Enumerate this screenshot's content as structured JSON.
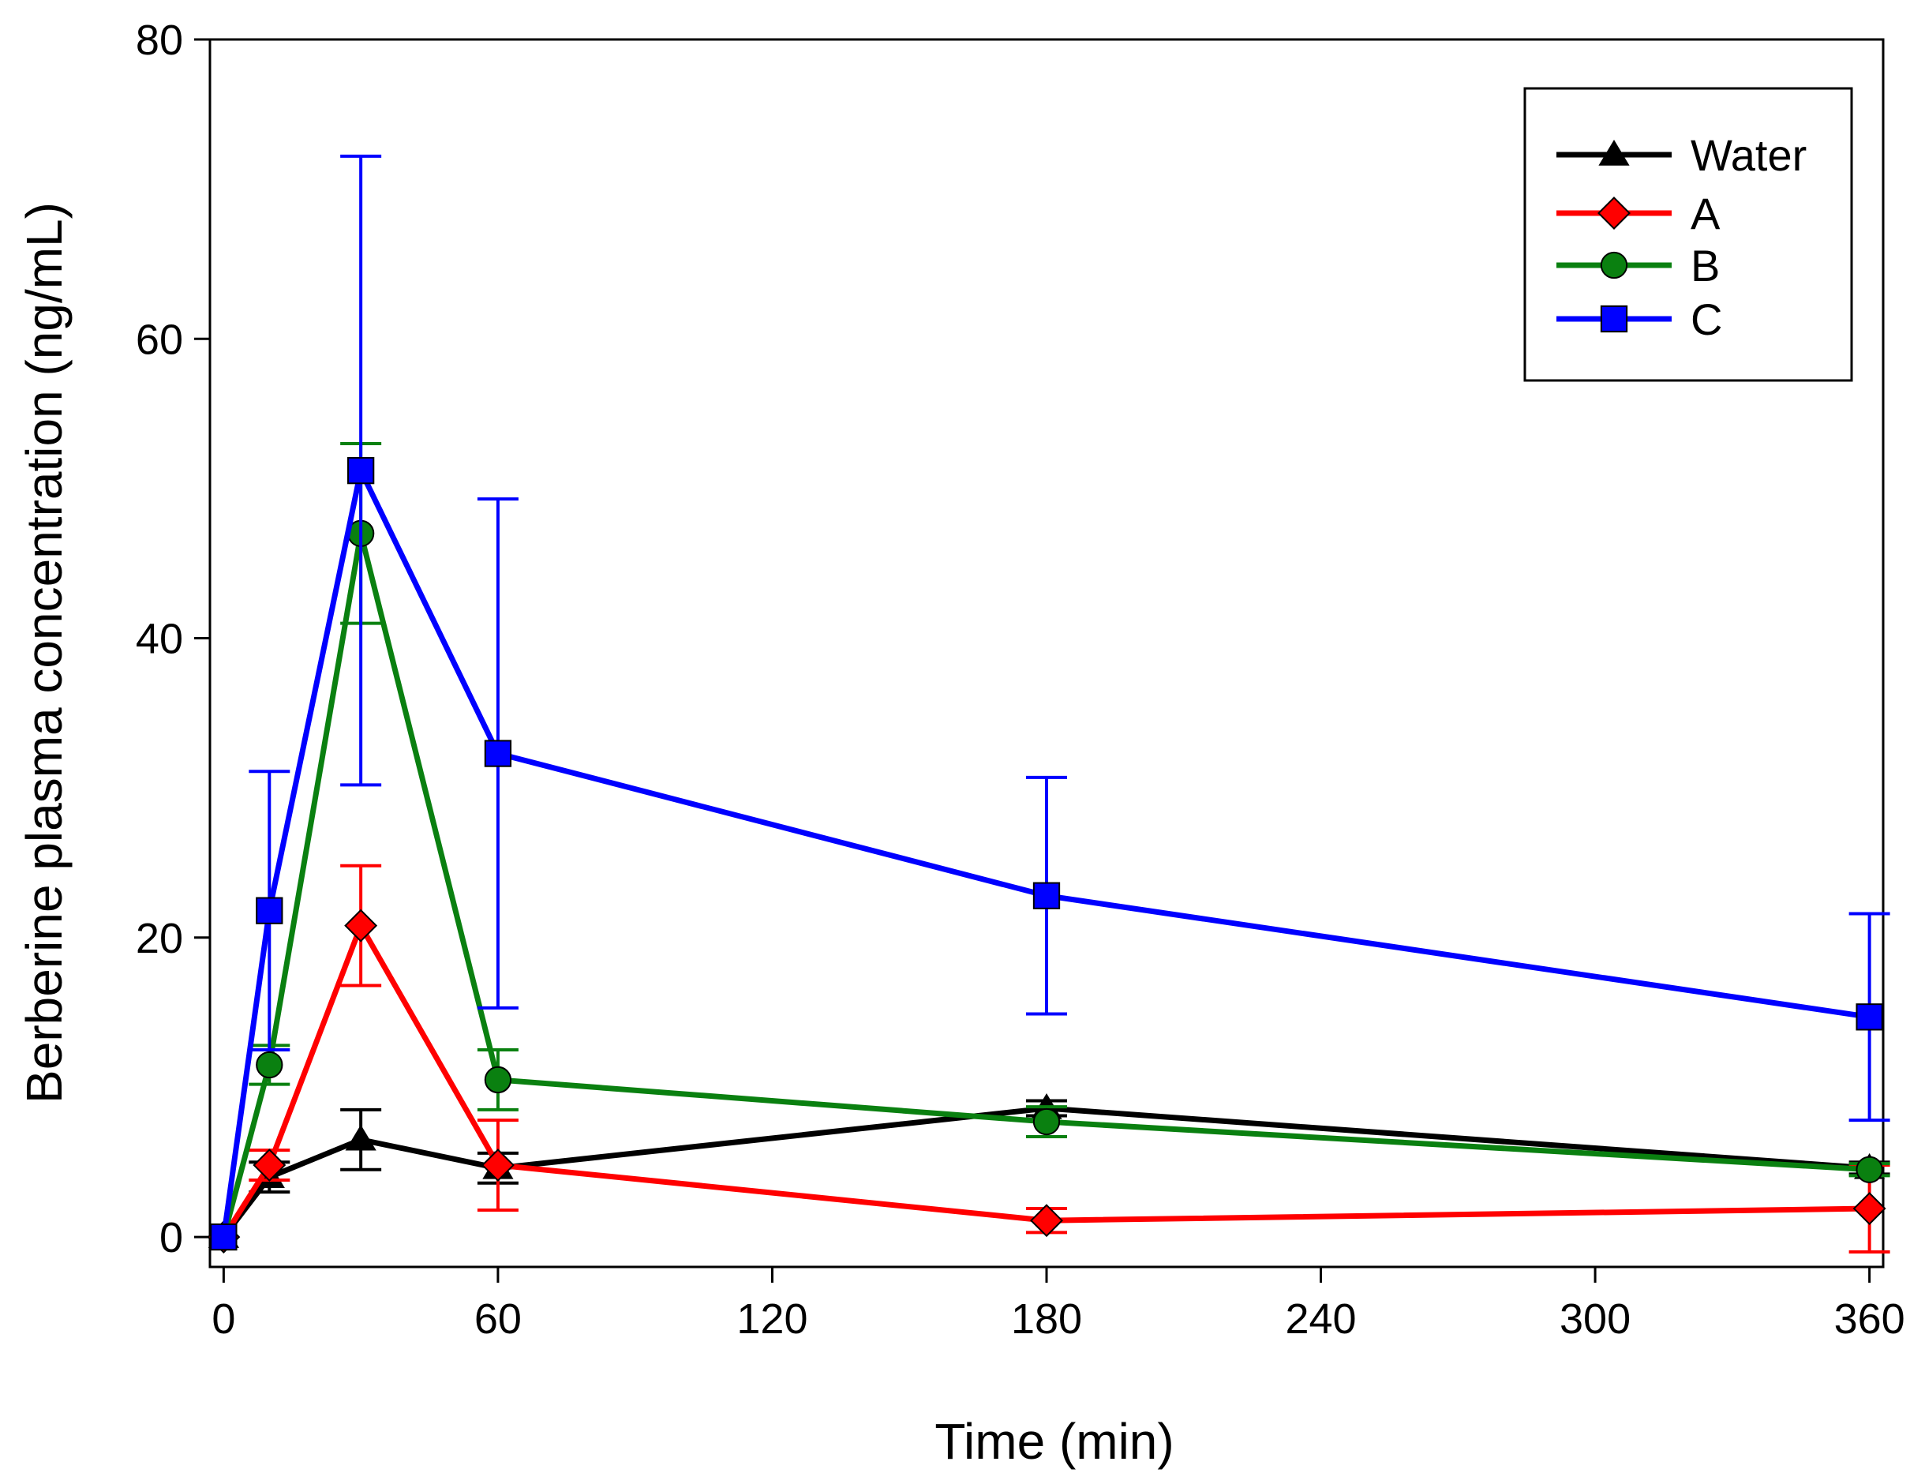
{
  "chart_data": {
    "type": "line",
    "title": "",
    "xlabel": "Time (min)",
    "ylabel": "Berberine plasma concentration (ng/mL)",
    "xlim": [
      -3,
      363
    ],
    "ylim": [
      -2,
      80
    ],
    "xticks": [
      0,
      60,
      120,
      180,
      240,
      300,
      360
    ],
    "yticks": [
      0,
      20,
      40,
      60,
      80
    ],
    "legend_position": "top-right",
    "x": [
      0,
      10,
      30,
      60,
      180,
      360
    ],
    "series": [
      {
        "name": "Water",
        "color": "#000000",
        "marker": "triangle",
        "values": [
          0,
          4,
          6.5,
          4.6,
          8.6,
          4.6
        ],
        "errors": [
          0,
          1.0,
          2.0,
          1.0,
          0.5,
          0.4
        ]
      },
      {
        "name": "A",
        "color": "#ff0000",
        "marker": "diamond",
        "values": [
          0,
          4.8,
          20.8,
          4.8,
          1.1,
          1.9
        ],
        "errors": [
          0,
          1.0,
          4.0,
          3.0,
          0.8,
          2.9
        ]
      },
      {
        "name": "B",
        "color": "#0a8010",
        "marker": "circle",
        "values": [
          0,
          11.5,
          47.0,
          10.5,
          7.7,
          4.5
        ],
        "errors": [
          0,
          1.3,
          6.0,
          2.0,
          1.0,
          0.4
        ]
      },
      {
        "name": "C",
        "color": "#0000ff",
        "marker": "square",
        "values": [
          0,
          21.8,
          51.2,
          32.3,
          22.8,
          14.7
        ],
        "errors": [
          0,
          9.3,
          21.0,
          17.0,
          7.9,
          6.9
        ]
      }
    ]
  }
}
